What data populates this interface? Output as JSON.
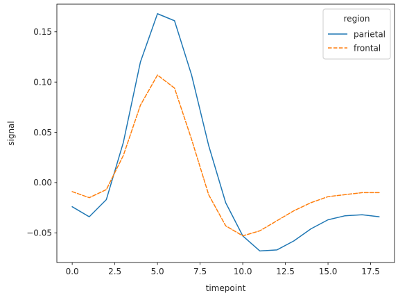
{
  "chart_data": {
    "type": "line",
    "xlabel": "timepoint",
    "ylabel": "signal",
    "xlim": [
      -0.9,
      18.9
    ],
    "ylim": [
      -0.0795,
      0.1775
    ],
    "xticks": [
      0.0,
      2.5,
      5.0,
      7.5,
      10.0,
      12.5,
      15.0,
      17.5
    ],
    "xtick_labels": [
      "0.0",
      "2.5",
      "5.0",
      "7.5",
      "10.0",
      "12.5",
      "15.0",
      "17.5"
    ],
    "yticks": [
      -0.05,
      0.0,
      0.05,
      0.1,
      0.15
    ],
    "ytick_labels": [
      "−0.05",
      "0.00",
      "0.05",
      "0.10",
      "0.15"
    ],
    "grid": false,
    "legend": {
      "title": "region",
      "placement": "top-right"
    },
    "x": [
      0,
      1,
      2,
      3,
      4,
      5,
      6,
      7,
      8,
      9,
      10,
      11,
      12,
      13,
      14,
      15,
      16,
      17,
      18
    ],
    "series": [
      {
        "name": "parietal",
        "color": "#1f77b4",
        "dash": "solid",
        "values": [
          -0.024,
          -0.034,
          -0.017,
          0.04,
          0.12,
          0.168,
          0.161,
          0.107,
          0.037,
          -0.02,
          -0.053,
          -0.068,
          -0.067,
          -0.058,
          -0.046,
          -0.037,
          -0.033,
          -0.032,
          -0.034
        ]
      },
      {
        "name": "frontal",
        "color": "#ff7f0e",
        "dash": "dashed",
        "values": [
          -0.009,
          -0.015,
          -0.007,
          0.027,
          0.077,
          0.107,
          0.094,
          0.043,
          -0.012,
          -0.043,
          -0.053,
          -0.048,
          -0.038,
          -0.028,
          -0.02,
          -0.014,
          -0.012,
          -0.01,
          -0.01
        ]
      }
    ]
  }
}
